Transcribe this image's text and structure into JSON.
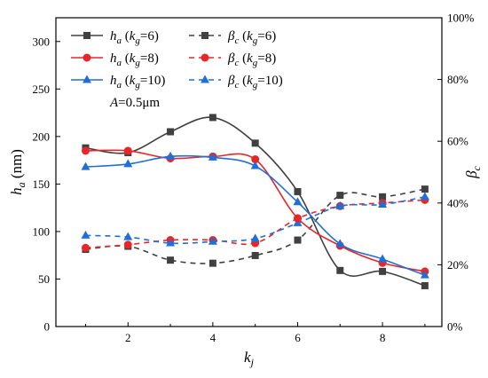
{
  "chart_data": {
    "type": "line",
    "x": [
      1,
      2,
      3,
      4,
      5,
      6,
      7,
      8,
      9
    ],
    "xlim": [
      0.3,
      9.4
    ],
    "xticks": [
      "2",
      "4",
      "6",
      "8"
    ],
    "xlabel": "k",
    "xlabel_sub": "j",
    "ylabel_left": "h",
    "ylabel_left_sub": "a",
    "ylabel_left_unit": " (nm)",
    "ylabel_right": "β",
    "ylabel_right_sub": "c",
    "ylim_left": [
      0,
      325
    ],
    "ylim_right": [
      0,
      100
    ],
    "yticks_left": [
      "0",
      "50",
      "100",
      "150",
      "200",
      "250",
      "300"
    ],
    "yticks_right": [
      "0%",
      "20%",
      "40%",
      "60%",
      "80%",
      "100%"
    ],
    "annotation": {
      "label": "A",
      "value": "=0.5μm"
    },
    "legend_position": "top-left",
    "colors": {
      "kg6": "#404040",
      "kg8": "#e8262a",
      "kg10": "#1f6fd6"
    },
    "series": [
      {
        "name": "h_a (k_g=6)",
        "axis": "left",
        "style": "solid",
        "marker": "square",
        "color": "#404040",
        "values": [
          188,
          183,
          205,
          220,
          193,
          142,
          59,
          58,
          43
        ]
      },
      {
        "name": "h_a (k_g=8)",
        "axis": "left",
        "style": "solid",
        "marker": "circle",
        "color": "#e8262a",
        "values": [
          185,
          185,
          177,
          179,
          176,
          114,
          85,
          67,
          58
        ]
      },
      {
        "name": "h_a (k_g=10)",
        "axis": "left",
        "style": "solid",
        "marker": "triangle",
        "color": "#1f6fd6",
        "values": [
          168,
          171,
          179,
          178,
          169,
          131,
          87,
          71,
          54
        ]
      },
      {
        "name": "β_c (k_g=6)",
        "axis": "right",
        "style": "dashed",
        "marker": "square",
        "color": "#404040",
        "values": [
          25,
          26,
          21.5,
          20.5,
          23,
          28,
          42.5,
          42,
          44.5
        ]
      },
      {
        "name": "β_c (k_g=8)",
        "axis": "right",
        "style": "dashed",
        "marker": "circle",
        "color": "#e8262a",
        "values": [
          25.5,
          26.5,
          28,
          28,
          27,
          35,
          39,
          40,
          41
        ]
      },
      {
        "name": "β_c (k_g=10)",
        "axis": "right",
        "style": "dashed",
        "marker": "triangle",
        "color": "#1f6fd6",
        "values": [
          29.5,
          29,
          27,
          27.5,
          28.5,
          33.5,
          39,
          39.5,
          42
        ]
      }
    ],
    "legend": [
      {
        "var": "h",
        "sub": "a",
        "k": "k",
        "ksub": "g",
        "val": "=6)",
        "series": 0
      },
      {
        "var": "β",
        "sub": "c",
        "k": "k",
        "ksub": "g",
        "val": "=6)",
        "series": 3
      },
      {
        "var": "h",
        "sub": "a",
        "k": "k",
        "ksub": "g",
        "val": "=8)",
        "series": 1
      },
      {
        "var": "β",
        "sub": "c",
        "k": "k",
        "ksub": "g",
        "val": "=8)",
        "series": 4
      },
      {
        "var": "h",
        "sub": "a",
        "k": "k",
        "ksub": "g",
        "val": "=10)",
        "series": 2
      },
      {
        "var": "β",
        "sub": "c",
        "k": "k",
        "ksub": "g",
        "val": "=10)",
        "series": 5
      }
    ]
  }
}
